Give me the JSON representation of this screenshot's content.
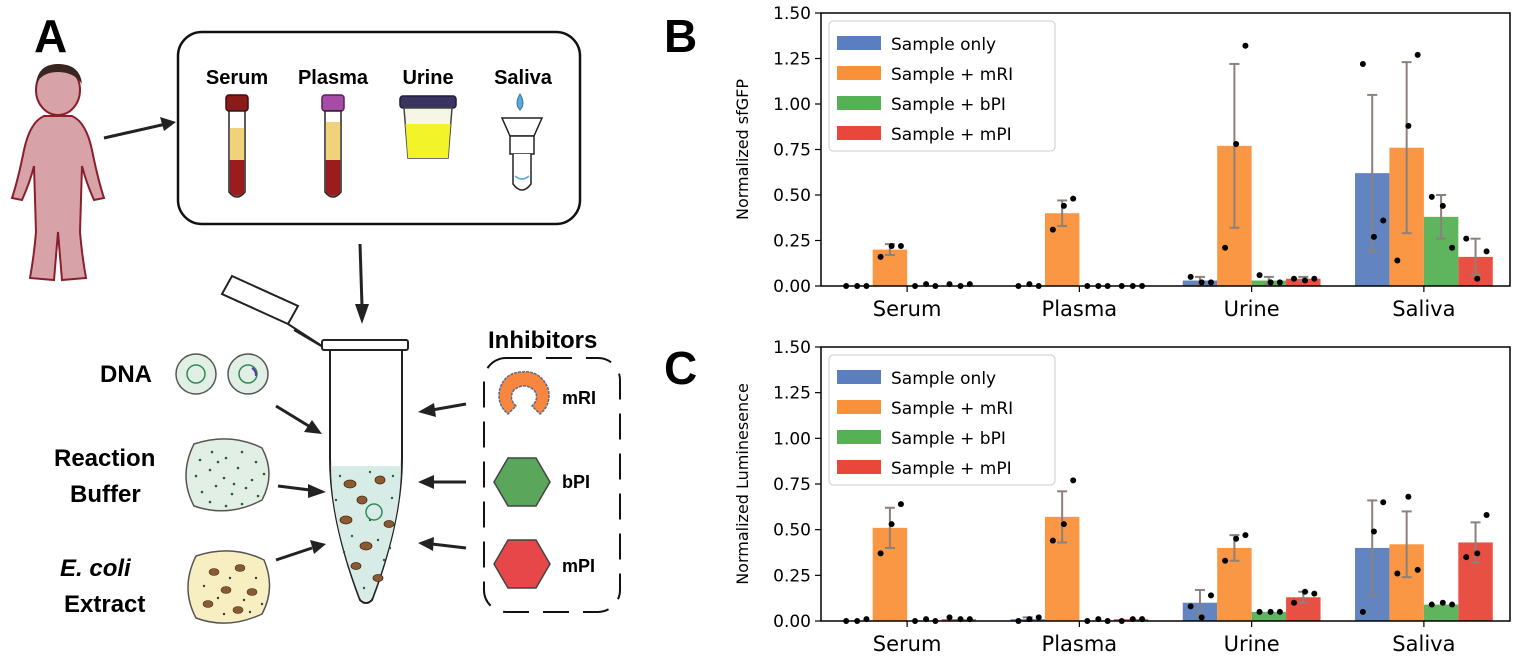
{
  "panel_labels": {
    "a": "A",
    "b": "B",
    "c": "C"
  },
  "schematic": {
    "samples": [
      "Serum",
      "Plasma",
      "Urine",
      "Saliva"
    ],
    "components": {
      "dna": "DNA",
      "reaction_buffer_line1": "Reaction",
      "reaction_buffer_line2": "Buffer",
      "extract_line1": "E. coli",
      "extract_line2": "Extract"
    },
    "inhibitors_title": "Inhibitors",
    "inhibitors": [
      "mRI",
      "bPI",
      "mPI"
    ]
  },
  "colors": {
    "sample_only": "#5a7ebf",
    "mRI": "#f9913b",
    "bPI": "#56b155",
    "mPI": "#e8473a",
    "error_bar": "#8c817a",
    "body_fill": "#d8a3a8",
    "urine": "#f3f329",
    "inhibitor_mRI": "#f7873f",
    "inhibitor_bPI": "#5aa65a",
    "inhibitor_mPI": "#e8474a"
  },
  "chart_data": [
    {
      "panel": "B",
      "type": "bar",
      "ylabel": "Normalized sfGFP",
      "xlabel": "",
      "ylim": [
        0,
        1.5
      ],
      "yticks": [
        "0.00",
        "0.25",
        "0.50",
        "0.75",
        "1.00",
        "1.25",
        "1.50"
      ],
      "categories": [
        "Serum",
        "Plasma",
        "Urine",
        "Saliva"
      ],
      "legend_position": "top-left",
      "grid": false,
      "series": [
        {
          "name": "Sample only",
          "values": [
            0.0,
            0.0,
            0.03,
            0.62
          ],
          "errors": [
            0.0,
            0.0,
            0.02,
            0.43
          ],
          "points": [
            [
              0.0,
              0.0,
              0.0
            ],
            [
              0.0,
              0.01,
              0.0
            ],
            [
              0.05,
              0.02,
              0.02
            ],
            [
              1.22,
              0.27,
              0.36
            ]
          ]
        },
        {
          "name": "Sample + mRI",
          "values": [
            0.2,
            0.4,
            0.77,
            0.76
          ],
          "errors": [
            0.03,
            0.07,
            0.45,
            0.47
          ],
          "points": [
            [
              0.16,
              0.22,
              0.22
            ],
            [
              0.31,
              0.44,
              0.48
            ],
            [
              0.21,
              0.78,
              1.32
            ],
            [
              0.14,
              0.88,
              1.27
            ]
          ]
        },
        {
          "name": "Sample + bPI",
          "values": [
            0.0,
            0.0,
            0.03,
            0.38
          ],
          "errors": [
            0.0,
            0.0,
            0.02,
            0.12
          ],
          "points": [
            [
              0.0,
              0.01,
              0.0
            ],
            [
              0.0,
              0.0,
              0.0
            ],
            [
              0.06,
              0.02,
              0.02
            ],
            [
              0.49,
              0.44,
              0.21
            ]
          ]
        },
        {
          "name": "Sample + mPI",
          "values": [
            0.0,
            0.0,
            0.04,
            0.16
          ],
          "errors": [
            0.0,
            0.0,
            0.01,
            0.1
          ],
          "points": [
            [
              0.01,
              0.0,
              0.01
            ],
            [
              0.0,
              0.0,
              0.0
            ],
            [
              0.04,
              0.03,
              0.04
            ],
            [
              0.26,
              0.04,
              0.19
            ]
          ]
        }
      ]
    },
    {
      "panel": "C",
      "type": "bar",
      "ylabel": "Normalized Luminesence",
      "xlabel": "",
      "ylim": [
        0,
        1.5
      ],
      "yticks": [
        "0.00",
        "0.25",
        "0.50",
        "0.75",
        "1.00",
        "1.25",
        "1.50"
      ],
      "categories": [
        "Serum",
        "Plasma",
        "Urine",
        "Saliva"
      ],
      "legend_position": "top-left",
      "grid": false,
      "series": [
        {
          "name": "Sample only",
          "values": [
            0.0,
            0.01,
            0.1,
            0.4
          ],
          "errors": [
            0.0,
            0.01,
            0.07,
            0.26
          ],
          "points": [
            [
              0.0,
              0.0,
              0.01
            ],
            [
              0.0,
              0.01,
              0.02
            ],
            [
              0.08,
              0.02,
              0.14
            ],
            [
              0.05,
              0.49,
              0.65
            ]
          ]
        },
        {
          "name": "Sample + mRI",
          "values": [
            0.51,
            0.57,
            0.4,
            0.42
          ],
          "errors": [
            0.11,
            0.14,
            0.07,
            0.18
          ],
          "points": [
            [
              0.37,
              0.53,
              0.64
            ],
            [
              0.44,
              0.53,
              0.77
            ],
            [
              0.33,
              0.45,
              0.47
            ],
            [
              0.26,
              0.68,
              0.28
            ]
          ]
        },
        {
          "name": "Sample + bPI",
          "values": [
            0.0,
            0.0,
            0.05,
            0.09
          ],
          "errors": [
            0.0,
            0.0,
            0.0,
            0.0
          ],
          "points": [
            [
              0.0,
              0.01,
              0.0
            ],
            [
              0.0,
              0.01,
              0.0
            ],
            [
              0.05,
              0.05,
              0.05
            ],
            [
              0.09,
              0.1,
              0.09
            ]
          ]
        },
        {
          "name": "Sample + mPI",
          "values": [
            0.01,
            0.01,
            0.13,
            0.43
          ],
          "errors": [
            0.0,
            0.0,
            0.03,
            0.11
          ],
          "points": [
            [
              0.02,
              0.01,
              0.01
            ],
            [
              0.0,
              0.01,
              0.01
            ],
            [
              0.1,
              0.16,
              0.15
            ],
            [
              0.35,
              0.37,
              0.58
            ]
          ]
        }
      ]
    }
  ]
}
